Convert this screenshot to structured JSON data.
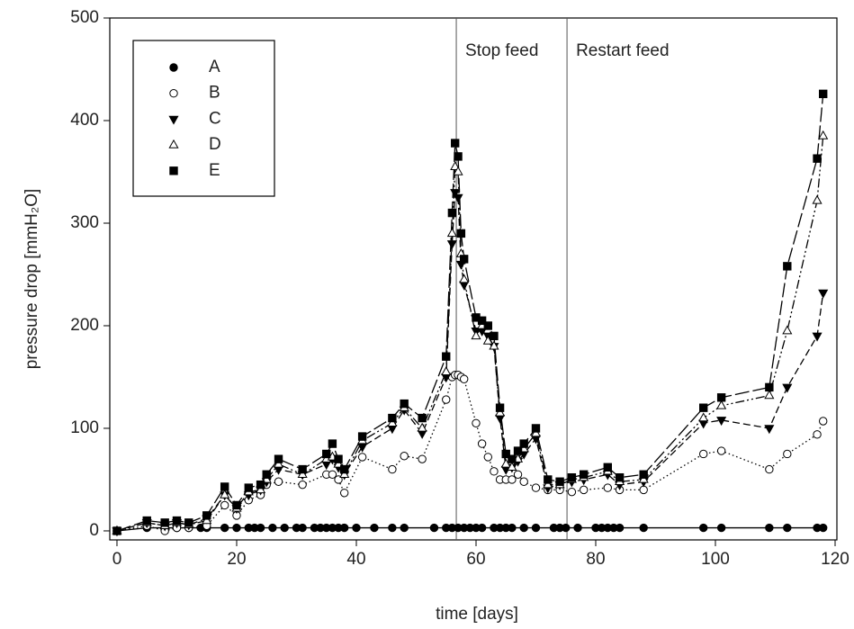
{
  "chart_data": {
    "type": "line",
    "xlabel": "time [days]",
    "ylabel": "pressure drop [mmH₂O]",
    "xlim": [
      -1.2,
      120.3
    ],
    "ylim": [
      -8.8,
      500
    ],
    "xticks": [
      0,
      20,
      40,
      60,
      80,
      100,
      120
    ],
    "yticks": [
      0,
      100,
      200,
      300,
      400,
      500
    ],
    "legend": "upper left",
    "annotations": [
      {
        "x": 56.7,
        "text": "Stop feed"
      },
      {
        "x": 75.2,
        "text": "Restart feed"
      }
    ],
    "series": [
      {
        "name": "A",
        "color": "#000000",
        "marker": "circle",
        "line_style": "solid",
        "x": [
          0,
          5,
          8,
          10,
          12,
          14,
          15,
          18,
          20,
          22,
          23,
          24,
          26,
          28,
          30,
          31,
          33,
          34,
          35,
          36,
          37,
          38,
          40,
          43,
          46,
          48,
          53,
          55,
          56,
          57,
          58,
          59,
          60,
          61,
          63,
          64,
          65,
          66,
          68,
          70,
          73,
          74,
          75,
          77,
          80,
          81,
          82,
          83,
          84,
          88,
          98,
          101,
          109,
          112,
          117,
          118
        ],
        "values": [
          0,
          3,
          3,
          3,
          3,
          3,
          3,
          3,
          3,
          3,
          3,
          3,
          3,
          3,
          3,
          3,
          3,
          3,
          3,
          3,
          3,
          3,
          3,
          3,
          3,
          3,
          3,
          3,
          3,
          3,
          3,
          3,
          3,
          3,
          3,
          3,
          3,
          3,
          3,
          3,
          3,
          3,
          3,
          3,
          3,
          3,
          3,
          3,
          3,
          3,
          3,
          3,
          3,
          3,
          3,
          3
        ]
      },
      {
        "name": "B",
        "color": "#000000",
        "marker": "circle-open",
        "line_style": "dotted",
        "x": [
          0,
          5,
          8,
          10,
          12,
          15,
          18,
          20,
          22,
          24,
          25,
          27,
          31,
          35,
          36,
          37,
          38,
          41,
          46,
          48,
          51,
          55,
          56,
          56.5,
          57,
          57.5,
          58,
          60,
          61,
          62,
          63,
          64,
          65,
          66,
          67,
          68,
          70,
          72,
          74,
          76,
          78,
          82,
          84,
          88,
          98,
          101,
          109,
          112,
          117,
          118
        ],
        "values": [
          0,
          5,
          0,
          3,
          3,
          5,
          25,
          15,
          30,
          35,
          45,
          48,
          45,
          55,
          55,
          50,
          37,
          72,
          60,
          73,
          70,
          128,
          150,
          152,
          152,
          150,
          148,
          105,
          85,
          72,
          58,
          50,
          50,
          50,
          55,
          48,
          42,
          40,
          40,
          38,
          40,
          42,
          40,
          40,
          75,
          78,
          60,
          75,
          94,
          107
        ]
      },
      {
        "name": "C",
        "color": "#000000",
        "marker": "triangle-down",
        "line_style": "dashed",
        "x": [
          0,
          5,
          8,
          10,
          12,
          15,
          18,
          20,
          22,
          24,
          25,
          27,
          31,
          35,
          36,
          37,
          38,
          41,
          46,
          48,
          51,
          55,
          56,
          56.5,
          57,
          57.5,
          58,
          60,
          61,
          62,
          63,
          64,
          65,
          66,
          67,
          68,
          70,
          72,
          74,
          76,
          78,
          82,
          84,
          88,
          98,
          101,
          109,
          112,
          117,
          118
        ],
        "values": [
          0,
          8,
          5,
          8,
          6,
          12,
          35,
          22,
          35,
          40,
          48,
          60,
          55,
          65,
          70,
          62,
          55,
          82,
          100,
          118,
          95,
          150,
          280,
          330,
          325,
          260,
          240,
          195,
          195,
          190,
          180,
          110,
          60,
          62,
          68,
          75,
          90,
          42,
          45,
          48,
          50,
          55,
          45,
          48,
          105,
          108,
          100,
          140,
          190,
          232
        ]
      },
      {
        "name": "D",
        "color": "#000000",
        "marker": "triangle-up-open",
        "line_style": "dash-dot-dot",
        "x": [
          0,
          5,
          8,
          10,
          12,
          15,
          18,
          20,
          22,
          24,
          25,
          27,
          31,
          35,
          36,
          37,
          38,
          41,
          46,
          48,
          51,
          55,
          56,
          56.5,
          57,
          57.5,
          58,
          60,
          61,
          62,
          63,
          64,
          65,
          66,
          67,
          68,
          70,
          72,
          74,
          76,
          78,
          82,
          84,
          88,
          98,
          101,
          109,
          112,
          117,
          118
        ],
        "values": [
          0,
          8,
          5,
          8,
          6,
          10,
          35,
          22,
          38,
          40,
          50,
          65,
          55,
          70,
          72,
          65,
          55,
          88,
          105,
          120,
          100,
          155,
          290,
          355,
          350,
          270,
          245,
          190,
          200,
          185,
          180,
          115,
          65,
          62,
          70,
          80,
          95,
          45,
          45,
          50,
          52,
          58,
          48,
          50,
          110,
          122,
          132,
          195,
          322,
          385
        ]
      },
      {
        "name": "E",
        "color": "#000000",
        "marker": "square",
        "line_style": "long-dash",
        "x": [
          0,
          5,
          8,
          10,
          12,
          15,
          18,
          20,
          22,
          24,
          25,
          27,
          31,
          35,
          36,
          37,
          38,
          41,
          46,
          48,
          51,
          55,
          56,
          56.5,
          57,
          57.5,
          58,
          60,
          61,
          62,
          63,
          64,
          65,
          66,
          67,
          68,
          70,
          72,
          74,
          76,
          78,
          82,
          84,
          88,
          98,
          101,
          109,
          112,
          117,
          118
        ],
        "values": [
          0,
          10,
          8,
          10,
          8,
          15,
          43,
          25,
          42,
          45,
          55,
          70,
          60,
          75,
          85,
          70,
          60,
          92,
          110,
          124,
          110,
          170,
          310,
          378,
          365,
          290,
          265,
          208,
          205,
          200,
          190,
          120,
          75,
          70,
          78,
          85,
          100,
          50,
          48,
          52,
          55,
          62,
          52,
          55,
          120,
          130,
          140,
          258,
          363,
          426
        ]
      }
    ]
  }
}
